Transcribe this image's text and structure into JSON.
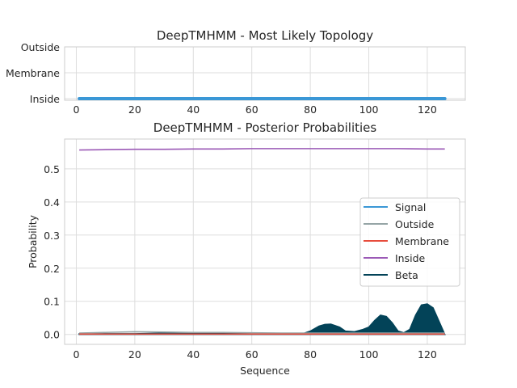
{
  "chart_data": [
    {
      "type": "line",
      "title": "DeepTMHMM - Most Likely Topology",
      "xlabel": "",
      "ylabel": "",
      "xlim": [
        -4,
        133
      ],
      "x_ticks": [
        0,
        20,
        40,
        60,
        80,
        100,
        120
      ],
      "y_ticks": [
        "Outside",
        "Membrane",
        "Inside"
      ],
      "grid": true,
      "series": [
        {
          "color": "#3a97d6",
          "x": [
            1,
            126
          ],
          "y": [
            "Inside",
            "Inside"
          ]
        }
      ]
    },
    {
      "type": "area",
      "title": "DeepTMHMM - Posterior Probabilities",
      "xlabel": "Sequence",
      "ylabel": "Probability",
      "xlim": [
        -4,
        133
      ],
      "ylim": [
        -0.03,
        0.59
      ],
      "x_ticks": [
        0,
        20,
        40,
        60,
        80,
        100,
        120
      ],
      "y_ticks": [
        "0.0",
        "0.1",
        "0.2",
        "0.3",
        "0.4",
        "0.5"
      ],
      "grid": true,
      "legend_position": "right",
      "series": [
        {
          "name": "Signal",
          "color": "#3a97d6",
          "fill": false,
          "x": [
            1,
            126
          ],
          "y": [
            0.001,
            0.001
          ]
        },
        {
          "name": "Outside",
          "color": "#95a5a6",
          "fill": false,
          "x": [
            1,
            10,
            20,
            30,
            40,
            50,
            60,
            70,
            80,
            90,
            100,
            110,
            120,
            126
          ],
          "y": [
            0.004,
            0.006,
            0.008,
            0.007,
            0.006,
            0.006,
            0.005,
            0.004,
            0.004,
            0.004,
            0.004,
            0.004,
            0.004,
            0.004
          ]
        },
        {
          "name": "Membrane",
          "color": "#e74c3c",
          "fill": false,
          "x": [
            1,
            126
          ],
          "y": [
            0.001,
            0.001
          ]
        },
        {
          "name": "Inside",
          "color": "#9b59b6",
          "fill": false,
          "x": [
            1,
            10,
            20,
            30,
            40,
            50,
            60,
            70,
            80,
            90,
            100,
            110,
            120,
            126
          ],
          "y": [
            0.557,
            0.558,
            0.559,
            0.559,
            0.56,
            0.56,
            0.561,
            0.561,
            0.561,
            0.561,
            0.561,
            0.561,
            0.56,
            0.56
          ]
        },
        {
          "name": "Beta",
          "color": "#034358",
          "fill": true,
          "x": [
            1,
            10,
            20,
            30,
            40,
            50,
            55,
            60,
            70,
            78,
            80,
            83,
            85,
            87,
            90,
            92,
            95,
            98,
            100,
            102,
            104,
            106,
            108,
            110,
            112,
            114,
            116,
            118,
            120,
            122,
            124,
            126
          ],
          "y": [
            0.002,
            0.002,
            0.002,
            0.004,
            0.003,
            0.004,
            0.003,
            0.004,
            0.003,
            0.004,
            0.01,
            0.025,
            0.03,
            0.031,
            0.022,
            0.01,
            0.008,
            0.015,
            0.022,
            0.042,
            0.058,
            0.054,
            0.035,
            0.01,
            0.005,
            0.015,
            0.058,
            0.089,
            0.092,
            0.08,
            0.04,
            0.0
          ]
        }
      ]
    }
  ]
}
